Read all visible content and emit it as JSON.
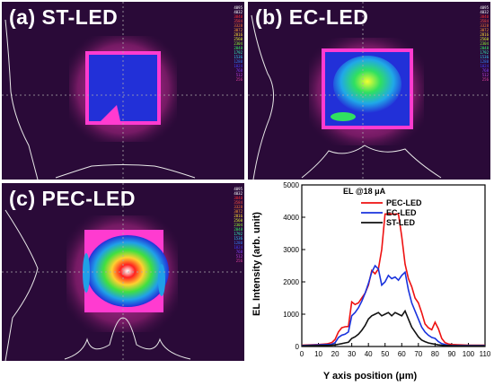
{
  "panels": [
    {
      "id": "a",
      "label": "(a)  ST-LED"
    },
    {
      "id": "b",
      "label": "(b)  EC-LED"
    },
    {
      "id": "c",
      "label": "(c)  PEC-LED"
    }
  ],
  "scale_labels": [
    "4095",
    "4032",
    "3840",
    "3584",
    "3328",
    "3072",
    "2816",
    "2560",
    "2304",
    "2048",
    "1792",
    "1536",
    "1280",
    "1024",
    "768",
    "512",
    "256"
  ],
  "scale_colors": [
    "#ffffff",
    "#ffffff",
    "#ff3030",
    "#ff5040",
    "#ff7a30",
    "#ffa030",
    "#ffe030",
    "#e0ff30",
    "#90ff30",
    "#30ff60",
    "#30ffc0",
    "#30d0ff",
    "#3080ff",
    "#4040ff",
    "#8040ff",
    "#c040e0",
    "#e040a0"
  ],
  "chart_data": {
    "type": "line",
    "xlabel": "Y axis position (μm)",
    "ylabel": "EL Intensity (arb. unit)",
    "xlim": [
      0,
      110
    ],
    "ylim": [
      0,
      5000
    ],
    "xticks": [
      "0",
      "10",
      "20",
      "30",
      "40",
      "50",
      "60",
      "70",
      "80",
      "90",
      "100",
      "110"
    ],
    "yticks": [
      "0",
      "1000",
      "2000",
      "3000",
      "4000",
      "5000"
    ],
    "annotation": "EL @18 μA",
    "legend_position": "top-right",
    "series": [
      {
        "name": "PEC-LED",
        "color": "#ee1111",
        "x": [
          0,
          5,
          10,
          15,
          18,
          20,
          22,
          24,
          26,
          28,
          30,
          32,
          34,
          36,
          38,
          40,
          42,
          44,
          46,
          48,
          50,
          52,
          54,
          56,
          58,
          60,
          62,
          64,
          66,
          68,
          70,
          72,
          74,
          76,
          78,
          80,
          82,
          84,
          86,
          88,
          90,
          95,
          100,
          105,
          110
        ],
        "y": [
          40,
          50,
          60,
          80,
          120,
          220,
          450,
          580,
          610,
          620,
          1380,
          1300,
          1350,
          1500,
          1650,
          1900,
          2350,
          2250,
          2400,
          3000,
          4100,
          4100,
          4100,
          4100,
          4100,
          3400,
          2550,
          2100,
          1850,
          1500,
          1350,
          1050,
          700,
          580,
          520,
          750,
          550,
          250,
          120,
          80,
          60,
          50,
          40,
          40,
          40
        ]
      },
      {
        "name": "EC-LED",
        "color": "#1a33dd",
        "x": [
          0,
          5,
          10,
          15,
          18,
          20,
          22,
          24,
          26,
          28,
          30,
          32,
          34,
          36,
          38,
          40,
          42,
          44,
          46,
          48,
          50,
          52,
          54,
          56,
          58,
          60,
          62,
          64,
          66,
          68,
          70,
          72,
          74,
          76,
          78,
          80,
          82,
          84,
          86,
          88,
          90,
          95,
          100,
          105,
          110
        ],
        "y": [
          30,
          40,
          50,
          60,
          70,
          120,
          280,
          350,
          380,
          450,
          950,
          1050,
          1200,
          1400,
          1650,
          1950,
          2300,
          2500,
          2400,
          1900,
          2000,
          2200,
          2100,
          2150,
          2050,
          2200,
          2300,
          1750,
          1350,
          1100,
          850,
          600,
          450,
          350,
          280,
          250,
          150,
          90,
          60,
          40,
          30,
          30,
          30,
          30,
          30
        ]
      },
      {
        "name": "ST-LED",
        "color": "#111111",
        "x": [
          0,
          5,
          10,
          15,
          18,
          20,
          22,
          24,
          26,
          28,
          30,
          32,
          34,
          36,
          38,
          40,
          42,
          44,
          46,
          48,
          50,
          52,
          54,
          56,
          58,
          60,
          62,
          64,
          66,
          68,
          70,
          72,
          74,
          76,
          78,
          80,
          82,
          84,
          86,
          88,
          90,
          95,
          100,
          105,
          110
        ],
        "y": [
          20,
          25,
          30,
          35,
          40,
          50,
          70,
          90,
          110,
          130,
          250,
          300,
          380,
          500,
          650,
          850,
          950,
          1000,
          1050,
          950,
          1000,
          1050,
          950,
          1050,
          1000,
          950,
          1100,
          850,
          600,
          450,
          300,
          200,
          150,
          110,
          90,
          70,
          50,
          40,
          30,
          30,
          25,
          20,
          20,
          20,
          20
        ]
      }
    ]
  }
}
